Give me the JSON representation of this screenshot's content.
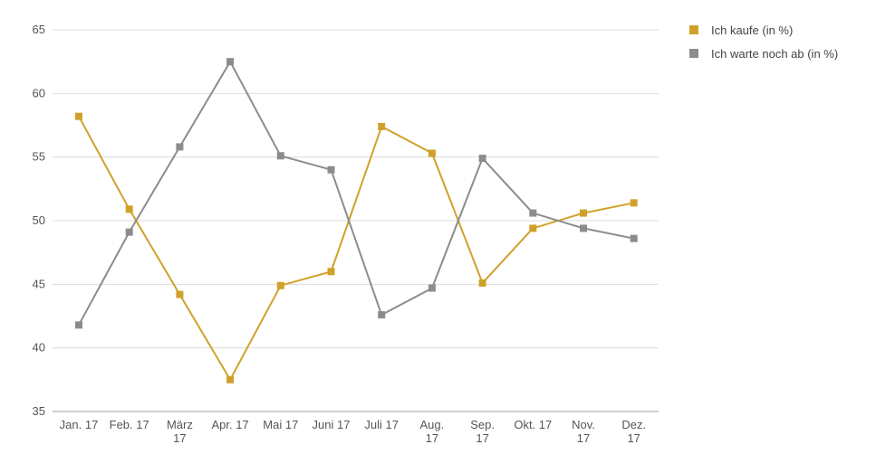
{
  "chart_data": {
    "type": "line",
    "categories": [
      [
        "Jan. 17"
      ],
      [
        "Feb. 17"
      ],
      [
        "März",
        "17"
      ],
      [
        "Apr. 17"
      ],
      [
        "Mai 17"
      ],
      [
        "Juni 17"
      ],
      [
        "Juli 17"
      ],
      [
        "Aug.",
        "17"
      ],
      [
        "Sep.",
        "17"
      ],
      [
        "Okt. 17"
      ],
      [
        "Nov.",
        "17"
      ],
      [
        "Dez.",
        "17"
      ]
    ],
    "series": [
      {
        "name": "Ich kaufe (in %)",
        "color": "#d0a12a",
        "values": [
          58.2,
          50.9,
          44.2,
          37.5,
          44.9,
          46.0,
          57.4,
          55.3,
          45.1,
          49.4,
          50.6,
          51.4
        ]
      },
      {
        "name": "Ich warte noch ab (in %)",
        "color": "#8c8c8c",
        "values": [
          41.8,
          49.1,
          55.8,
          62.5,
          55.1,
          54.0,
          42.6,
          44.7,
          54.9,
          50.6,
          49.4,
          48.6
        ]
      }
    ],
    "ylim": [
      35,
      65
    ],
    "yticks": [
      35,
      40,
      45,
      50,
      55,
      60,
      65
    ],
    "grid": true,
    "legend": "top-right"
  }
}
